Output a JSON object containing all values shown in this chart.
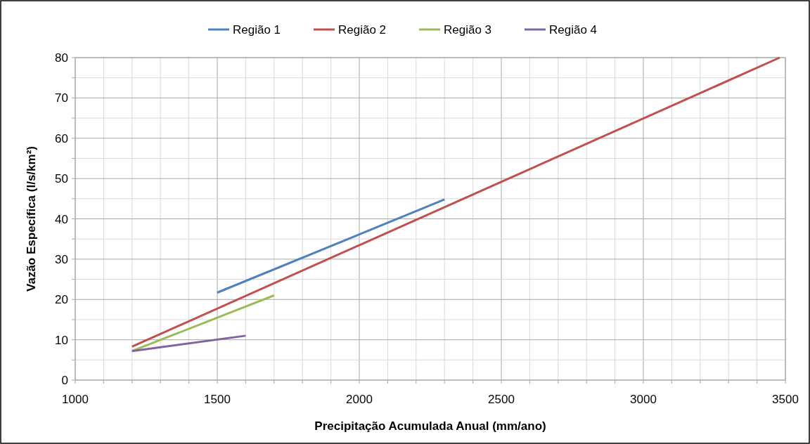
{
  "chart_data": {
    "type": "line",
    "xlabel": "Precipitação Acumulada Anual (mm/ano)",
    "ylabel": "Vazão Específica (l/s/km²)",
    "xlim": [
      1000,
      3500
    ],
    "ylim": [
      0,
      80
    ],
    "xticks": [
      1000,
      {
        "value": 1100,
        "label": null
      },
      {
        "value": 1200,
        "label": null
      },
      {
        "value": 1300,
        "label": null
      },
      {
        "value": 1400,
        "label": null
      },
      1500,
      {
        "value": 1600,
        "label": null
      },
      {
        "value": 1700,
        "label": null
      },
      {
        "value": 1800,
        "label": null
      },
      {
        "value": 1900,
        "label": null
      },
      2000,
      {
        "value": 2100,
        "label": null
      },
      {
        "value": 2200,
        "label": null
      },
      {
        "value": 2300,
        "label": null
      },
      {
        "value": 2400,
        "label": null
      },
      2500,
      {
        "value": 2600,
        "label": null
      },
      {
        "value": 2700,
        "label": null
      },
      {
        "value": 2800,
        "label": null
      },
      {
        "value": 2900,
        "label": null
      },
      3000,
      {
        "value": 3100,
        "label": null
      },
      {
        "value": 3200,
        "label": null
      },
      {
        "value": 3300,
        "label": null
      },
      {
        "value": 3400,
        "label": null
      },
      3500
    ],
    "yticks": [
      0,
      {
        "value": 5,
        "label": null
      },
      10,
      {
        "value": 15,
        "label": null
      },
      20,
      {
        "value": 25,
        "label": null
      },
      30,
      {
        "value": 35,
        "label": null
      },
      40,
      {
        "value": 45,
        "label": null
      },
      50,
      {
        "value": 55,
        "label": null
      },
      60,
      {
        "value": 65,
        "label": null
      },
      70,
      {
        "value": 75,
        "label": null
      },
      80
    ],
    "grid": true,
    "legend": "top",
    "marker": "none",
    "line_style": "solid",
    "series": [
      {
        "name": "Região 1",
        "color": "#4f81bd",
        "x": [
          1500,
          2300
        ],
        "values": [
          21.7,
          44.8
        ]
      },
      {
        "name": "Região 2",
        "color": "#c0504d",
        "x": [
          1200,
          3480
        ],
        "values": [
          8.3,
          80
        ]
      },
      {
        "name": "Região 3",
        "color": "#9bbb59",
        "x": [
          1200,
          1700
        ],
        "values": [
          7.2,
          21
        ]
      },
      {
        "name": "Região 4",
        "color": "#8064a2",
        "x": [
          1200,
          1600
        ],
        "values": [
          7.2,
          11
        ]
      }
    ]
  }
}
